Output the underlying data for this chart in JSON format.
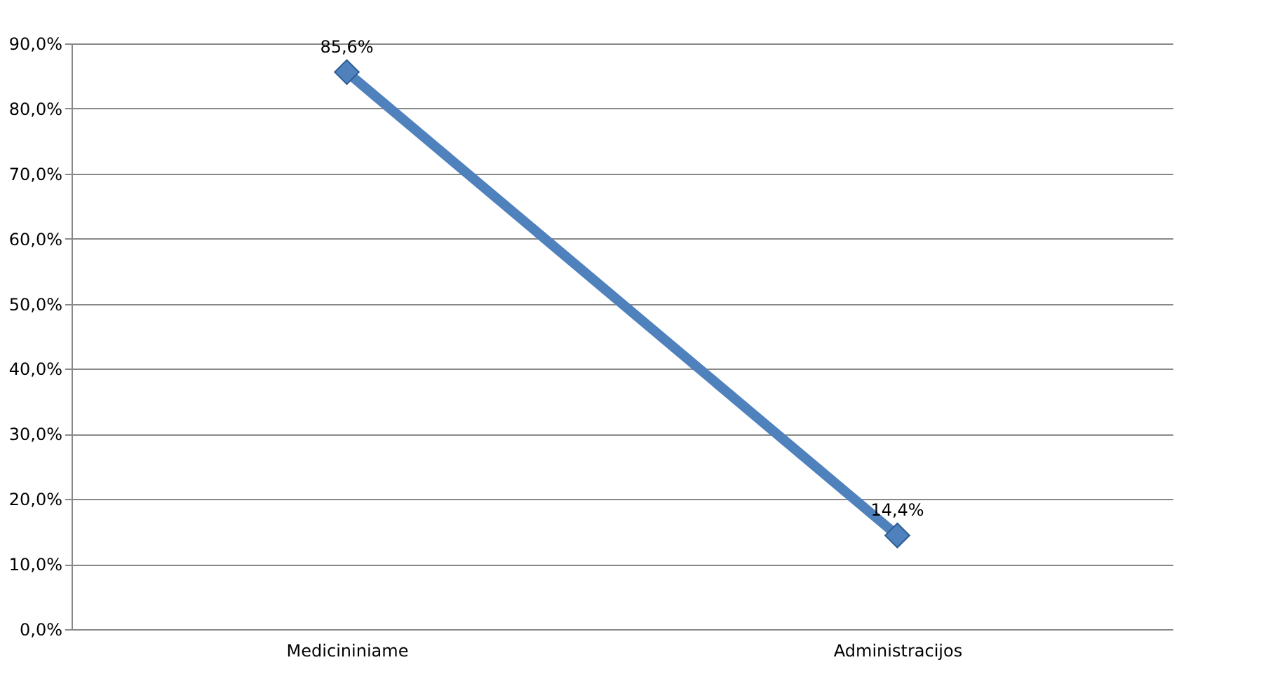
{
  "chart_data": {
    "type": "line",
    "categories": [
      "Medicininiame",
      "Administracijos"
    ],
    "series": [
      {
        "color": "#4f81bd",
        "values": [
          85.6,
          14.4
        ],
        "value_labels": [
          "85,6%",
          "14,4%"
        ]
      }
    ],
    "ylim": [
      0,
      90
    ],
    "yticks": [
      {
        "value": 0,
        "label": "0,0%"
      },
      {
        "value": 10,
        "label": "10,0%"
      },
      {
        "value": 20,
        "label": "20,0%"
      },
      {
        "value": 30,
        "label": "30,0%"
      },
      {
        "value": 40,
        "label": "40,0%"
      },
      {
        "value": 50,
        "label": "50,0%"
      },
      {
        "value": 60,
        "label": "60,0%"
      },
      {
        "value": 70,
        "label": "70,0%"
      },
      {
        "value": 80,
        "label": "80,0%"
      },
      {
        "value": 90,
        "label": "90,0%"
      }
    ],
    "grid": "y",
    "marker": "diamond",
    "line_style": "solid"
  }
}
